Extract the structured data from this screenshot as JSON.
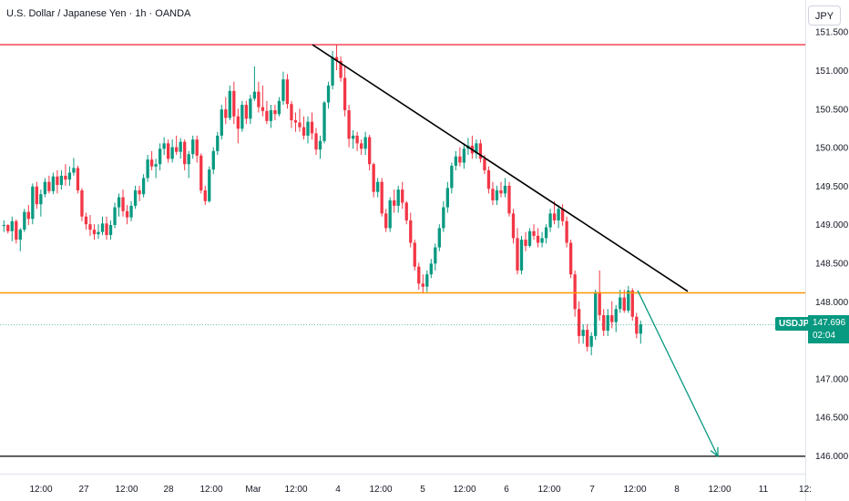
{
  "header": {
    "title": "U.S. Dollar / Japanese Yen · 1h · OANDA",
    "currency_button": "JPY"
  },
  "price_tag": {
    "symbol": "USDJPY",
    "price": "147.696",
    "countdown": "02:04"
  },
  "colors": {
    "up": "#089981",
    "down": "#f23645",
    "resistance": "#f23645",
    "support": "#ff9800",
    "target": "#000000",
    "trendline": "#000000",
    "arrow": "#089981"
  },
  "chart_data": {
    "type": "candlestick",
    "y_axis": {
      "range": [
        145.92,
        151.38
      ],
      "ticks": [
        "146.000",
        "146.500",
        "147.000",
        "147.500",
        "148.000",
        "148.500",
        "149.000",
        "149.500",
        "150.000",
        "150.500",
        "151.000",
        "151.500"
      ]
    },
    "x_axis": {
      "ticks": [
        "12:00",
        "27",
        "12:00",
        "28",
        "12:00",
        "Mar",
        "12:00",
        "4",
        "12:00",
        "5",
        "12:00",
        "6",
        "12:00",
        "7",
        "12:00",
        "8",
        "12:00",
        "11",
        "12:"
      ]
    },
    "horizontal_levels": [
      151.33,
      148.11,
      145.99
    ],
    "last_price": 147.696,
    "trendline": {
      "from": {
        "bar": 0,
        "price": 151.33
      },
      "to": {
        "bar": 0,
        "price": 148.13
      }
    },
    "projection_arrow": {
      "from_price": 148.14,
      "to_price": 145.99
    },
    "candles": [
      [
        148.98,
        149.05,
        148.9,
        148.99
      ],
      [
        148.99,
        149.0,
        148.88,
        148.91
      ],
      [
        148.91,
        149.1,
        148.78,
        149.04
      ],
      [
        149.04,
        149.06,
        148.75,
        148.8
      ],
      [
        148.8,
        148.95,
        148.65,
        148.93
      ],
      [
        148.93,
        149.2,
        148.9,
        149.16
      ],
      [
        149.16,
        149.25,
        148.99,
        149.07
      ],
      [
        149.07,
        149.53,
        149.0,
        149.49
      ],
      [
        149.49,
        149.55,
        149.2,
        149.26
      ],
      [
        149.26,
        149.45,
        149.1,
        149.39
      ],
      [
        149.39,
        149.6,
        149.35,
        149.55
      ],
      [
        149.55,
        149.63,
        149.4,
        149.43
      ],
      [
        149.43,
        149.67,
        149.39,
        149.62
      ],
      [
        149.62,
        149.7,
        149.4,
        149.51
      ],
      [
        149.51,
        149.7,
        149.45,
        149.63
      ],
      [
        149.63,
        149.78,
        149.5,
        149.58
      ],
      [
        149.58,
        149.75,
        149.5,
        149.67
      ],
      [
        149.67,
        149.86,
        149.63,
        149.73
      ],
      [
        149.73,
        149.76,
        149.4,
        149.44
      ],
      [
        149.44,
        149.47,
        149.04,
        149.1
      ],
      [
        149.1,
        149.15,
        148.93,
        149.0
      ],
      [
        149.0,
        149.12,
        148.85,
        148.93
      ],
      [
        148.93,
        149.0,
        148.8,
        148.87
      ],
      [
        148.87,
        149.0,
        148.81,
        148.9
      ],
      [
        148.9,
        149.1,
        148.86,
        149.01
      ],
      [
        149.01,
        149.1,
        148.8,
        148.86
      ],
      [
        148.86,
        149.05,
        148.8,
        148.99
      ],
      [
        148.99,
        149.28,
        148.95,
        149.22
      ],
      [
        149.22,
        149.4,
        149.1,
        149.35
      ],
      [
        149.35,
        149.45,
        149.1,
        149.17
      ],
      [
        149.17,
        149.25,
        149.0,
        149.09
      ],
      [
        149.09,
        149.3,
        149.04,
        149.24
      ],
      [
        149.24,
        149.5,
        149.2,
        149.44
      ],
      [
        149.44,
        149.5,
        149.3,
        149.39
      ],
      [
        149.39,
        149.65,
        149.35,
        149.6
      ],
      [
        149.6,
        149.9,
        149.55,
        149.84
      ],
      [
        149.84,
        149.95,
        149.7,
        149.75
      ],
      [
        149.75,
        149.85,
        149.6,
        149.78
      ],
      [
        149.78,
        150.05,
        149.7,
        149.98
      ],
      [
        149.98,
        150.13,
        149.9,
        150.05
      ],
      [
        150.05,
        150.1,
        149.8,
        149.85
      ],
      [
        149.85,
        150.1,
        149.8,
        150.0
      ],
      [
        150.0,
        150.15,
        149.9,
        149.94
      ],
      [
        149.94,
        150.12,
        149.85,
        150.07
      ],
      [
        150.07,
        150.1,
        149.7,
        149.78
      ],
      [
        149.78,
        149.95,
        149.6,
        149.91
      ],
      [
        149.91,
        150.15,
        149.85,
        150.1
      ],
      [
        150.1,
        150.15,
        149.8,
        149.89
      ],
      [
        149.89,
        149.92,
        149.4,
        149.44
      ],
      [
        149.44,
        149.5,
        149.25,
        149.3
      ],
      [
        149.3,
        149.75,
        149.28,
        149.71
      ],
      [
        149.71,
        150.0,
        149.65,
        149.95
      ],
      [
        149.95,
        150.2,
        149.9,
        150.15
      ],
      [
        150.15,
        150.55,
        150.1,
        150.49
      ],
      [
        150.49,
        150.65,
        150.3,
        150.38
      ],
      [
        150.38,
        150.8,
        150.35,
        150.73
      ],
      [
        150.73,
        150.85,
        150.3,
        150.4
      ],
      [
        150.4,
        150.5,
        150.05,
        150.24
      ],
      [
        150.24,
        150.6,
        150.2,
        150.55
      ],
      [
        150.55,
        150.6,
        150.3,
        150.37
      ],
      [
        150.37,
        150.68,
        150.3,
        150.63
      ],
      [
        150.63,
        151.05,
        150.6,
        150.72
      ],
      [
        150.72,
        150.85,
        150.45,
        150.52
      ],
      [
        150.52,
        150.8,
        150.4,
        150.47
      ],
      [
        150.47,
        150.6,
        150.3,
        150.34
      ],
      [
        150.34,
        150.55,
        150.25,
        150.48
      ],
      [
        150.48,
        150.55,
        150.35,
        150.43
      ],
      [
        150.43,
        150.65,
        150.4,
        150.6
      ],
      [
        150.6,
        150.98,
        150.55,
        150.88
      ],
      [
        150.88,
        150.95,
        150.5,
        150.56
      ],
      [
        150.56,
        150.6,
        150.25,
        150.35
      ],
      [
        150.35,
        150.45,
        150.2,
        150.32
      ],
      [
        150.32,
        150.5,
        150.2,
        150.26
      ],
      [
        150.26,
        150.4,
        150.1,
        150.15
      ],
      [
        150.15,
        150.4,
        150.05,
        150.33
      ],
      [
        150.33,
        150.45,
        150.1,
        150.18
      ],
      [
        150.18,
        150.25,
        149.9,
        149.97
      ],
      [
        149.97,
        150.15,
        149.85,
        150.08
      ],
      [
        150.08,
        150.6,
        150.05,
        150.58
      ],
      [
        150.58,
        150.85,
        150.5,
        150.8
      ],
      [
        150.8,
        151.25,
        150.75,
        151.17
      ],
      [
        151.17,
        151.33,
        151.0,
        151.12
      ],
      [
        151.12,
        151.18,
        150.85,
        150.9
      ],
      [
        150.9,
        151.05,
        150.4,
        150.48
      ],
      [
        150.48,
        150.55,
        150.0,
        150.11
      ],
      [
        150.11,
        150.22,
        149.98,
        150.15
      ],
      [
        150.15,
        150.2,
        149.95,
        150.05
      ],
      [
        150.05,
        150.1,
        149.9,
        149.98
      ],
      [
        149.98,
        150.2,
        149.9,
        150.13
      ],
      [
        150.13,
        150.16,
        149.7,
        149.78
      ],
      [
        149.78,
        149.8,
        149.35,
        149.42
      ],
      [
        149.42,
        149.6,
        149.35,
        149.55
      ],
      [
        149.55,
        149.6,
        149.1,
        149.14
      ],
      [
        149.14,
        149.2,
        148.9,
        148.95
      ],
      [
        148.95,
        149.35,
        148.9,
        149.31
      ],
      [
        149.31,
        149.45,
        149.15,
        149.24
      ],
      [
        149.24,
        149.5,
        149.15,
        149.45
      ],
      [
        149.45,
        149.55,
        149.2,
        149.28
      ],
      [
        149.28,
        149.3,
        149.0,
        149.05
      ],
      [
        149.05,
        149.15,
        148.7,
        148.76
      ],
      [
        148.76,
        148.8,
        148.4,
        148.45
      ],
      [
        148.45,
        148.5,
        148.15,
        148.23
      ],
      [
        148.23,
        148.35,
        148.1,
        148.19
      ],
      [
        148.19,
        148.4,
        148.12,
        148.35
      ],
      [
        148.35,
        148.55,
        148.3,
        148.49
      ],
      [
        148.49,
        148.75,
        148.4,
        148.7
      ],
      [
        148.7,
        149.0,
        148.65,
        148.95
      ],
      [
        148.95,
        149.3,
        148.9,
        149.22
      ],
      [
        149.22,
        149.55,
        149.15,
        149.47
      ],
      [
        149.47,
        149.8,
        149.4,
        149.76
      ],
      [
        149.76,
        149.95,
        149.7,
        149.88
      ],
      [
        149.88,
        150.0,
        149.75,
        149.8
      ],
      [
        149.8,
        150.05,
        149.72,
        149.98
      ],
      [
        149.98,
        150.12,
        149.9,
        150.02
      ],
      [
        150.02,
        150.15,
        149.85,
        149.92
      ],
      [
        149.92,
        150.1,
        149.85,
        150.05
      ],
      [
        150.05,
        150.1,
        149.8,
        149.85
      ],
      [
        149.85,
        149.9,
        149.65,
        149.7
      ],
      [
        149.7,
        149.75,
        149.4,
        149.46
      ],
      [
        149.46,
        149.55,
        149.25,
        149.31
      ],
      [
        149.31,
        149.5,
        149.25,
        149.44
      ],
      [
        149.44,
        149.55,
        149.35,
        149.4
      ],
      [
        149.4,
        149.6,
        149.35,
        149.5
      ],
      [
        149.5,
        149.55,
        149.1,
        149.14
      ],
      [
        149.14,
        149.2,
        148.75,
        148.82
      ],
      [
        148.82,
        148.95,
        148.35,
        148.4
      ],
      [
        148.4,
        148.85,
        148.35,
        148.8
      ],
      [
        148.8,
        148.9,
        148.65,
        148.72
      ],
      [
        148.72,
        148.95,
        148.7,
        148.91
      ],
      [
        148.91,
        149.0,
        148.8,
        148.85
      ],
      [
        148.85,
        148.95,
        148.7,
        148.76
      ],
      [
        148.76,
        148.9,
        148.7,
        148.82
      ],
      [
        148.82,
        149.0,
        148.75,
        148.96
      ],
      [
        148.96,
        149.2,
        148.9,
        149.14
      ],
      [
        149.14,
        149.3,
        149.0,
        149.05
      ],
      [
        149.05,
        149.25,
        148.95,
        149.2
      ],
      [
        149.2,
        149.26,
        148.98,
        149.04
      ],
      [
        149.04,
        149.1,
        148.7,
        148.76
      ],
      [
        148.76,
        148.8,
        148.3,
        148.35
      ],
      [
        148.35,
        148.4,
        147.8,
        147.9
      ],
      [
        147.9,
        148.0,
        147.45,
        147.55
      ],
      [
        147.55,
        147.7,
        147.45,
        147.63
      ],
      [
        147.63,
        147.7,
        147.35,
        147.41
      ],
      [
        147.41,
        147.6,
        147.3,
        147.55
      ],
      [
        147.55,
        148.15,
        147.5,
        148.12
      ],
      [
        148.12,
        148.4,
        147.75,
        147.82
      ],
      [
        147.82,
        147.9,
        147.55,
        147.62
      ],
      [
        147.62,
        147.9,
        147.55,
        147.82
      ],
      [
        147.82,
        148.0,
        147.65,
        147.73
      ],
      [
        147.73,
        147.95,
        147.6,
        147.9
      ],
      [
        147.9,
        148.15,
        147.85,
        148.05
      ],
      [
        148.05,
        148.15,
        147.85,
        147.88
      ],
      [
        147.88,
        148.2,
        147.85,
        148.14
      ],
      [
        148.14,
        148.17,
        147.75,
        147.8
      ],
      [
        147.8,
        147.85,
        147.52,
        147.58
      ],
      [
        147.58,
        147.75,
        147.45,
        147.7
      ]
    ]
  }
}
